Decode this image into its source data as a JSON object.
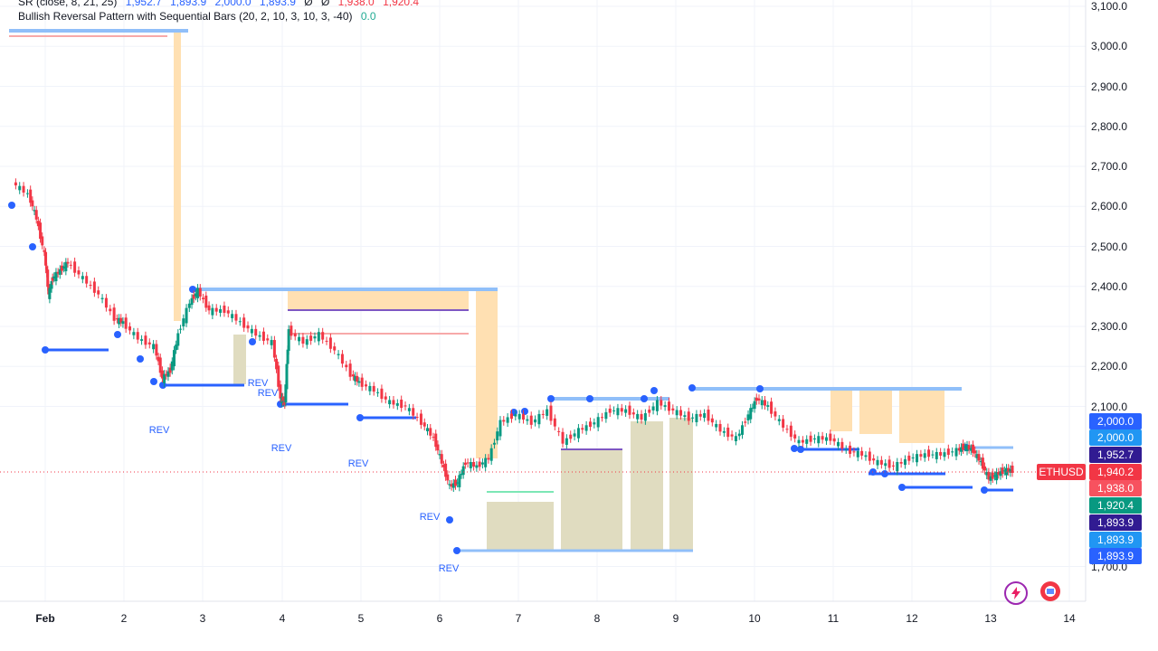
{
  "indicators": [
    {
      "name": "SR (close, 8, 21, 25)",
      "values": [
        "1,952.7",
        "1,893.9",
        "2,000.0",
        "1,893.9",
        "Ø",
        "Ø",
        "1,938.0",
        "1,920.4"
      ],
      "value_colors": [
        "#2962ff",
        "#2962ff",
        "#2962ff",
        "#2962ff",
        "#131722",
        "#131722",
        "#f23645",
        "#f23645"
      ]
    },
    {
      "name": "Bullish Reversal Pattern with Sequential Bars (20, 2, 10, 3, 10, 3, -40)",
      "values": [
        "0.0"
      ],
      "value_colors": [
        "#22ab94"
      ]
    }
  ],
  "y_axis": {
    "ticks": [
      "3,100.0",
      "3,000.0",
      "2,900.0",
      "2,800.0",
      "2,700.0",
      "2,600.0",
      "2,500.0",
      "2,400.0",
      "2,300.0",
      "2,200.0",
      "2,100.0",
      "1,700.0"
    ],
    "tick_values": [
      3100,
      3000,
      2900,
      2800,
      2700,
      2600,
      2500,
      2400,
      2300,
      2200,
      2100,
      1700
    ]
  },
  "x_axis": {
    "labels": [
      "Feb",
      "2",
      "3",
      "4",
      "5",
      "6",
      "7",
      "8",
      "9",
      "10",
      "11",
      "12",
      "13",
      "14"
    ]
  },
  "price_tags": [
    {
      "value": "2,000.0",
      "color": "#2962ff"
    },
    {
      "value": "2,000.0",
      "color": "#2196f3"
    },
    {
      "value": "1,952.7",
      "color": "#311b92"
    },
    {
      "value": "1,940.2",
      "color": "#f23645"
    },
    {
      "value": "1,938.0",
      "color": "#f7525f"
    },
    {
      "value": "1,920.4",
      "color": "#089981"
    },
    {
      "value": "1,893.9",
      "color": "#311b92"
    },
    {
      "value": "1,893.9",
      "color": "#2196f3"
    },
    {
      "value": "1,893.9",
      "color": "#2962ff"
    }
  ],
  "symbol": "ETHUSD",
  "rev_label": "REV",
  "colors": {
    "up": "#089981",
    "down": "#f23645",
    "support_line": "#2962ff",
    "resistance_band": "#ffe0b2",
    "olive_box": "#e0dcc0"
  },
  "chart_data": {
    "type": "line",
    "title": "",
    "xlabel": "",
    "ylabel": "",
    "ylim": [
      1650,
      3130
    ],
    "xlim": [
      0.6,
      14.2
    ],
    "series": [
      {
        "values": [
          [
            0.6,
            2660
          ],
          [
            0.8,
            2630
          ],
          [
            0.9,
            2570
          ],
          [
            1.0,
            2480
          ],
          [
            1.05,
            2380
          ],
          [
            1.1,
            2420
          ],
          [
            1.2,
            2440
          ],
          [
            1.3,
            2460
          ],
          [
            1.5,
            2420
          ],
          [
            1.7,
            2380
          ],
          [
            1.9,
            2320
          ],
          [
            2.0,
            2310
          ],
          [
            2.2,
            2270
          ],
          [
            2.4,
            2250
          ],
          [
            2.5,
            2170
          ],
          [
            2.6,
            2190
          ],
          [
            2.7,
            2280
          ],
          [
            2.85,
            2360
          ],
          [
            2.95,
            2390
          ],
          [
            3.1,
            2340
          ],
          [
            3.3,
            2340
          ],
          [
            3.5,
            2310
          ],
          [
            3.7,
            2280
          ],
          [
            3.9,
            2260
          ],
          [
            4.0,
            2120
          ],
          [
            4.05,
            2110
          ],
          [
            4.1,
            2290
          ],
          [
            4.3,
            2260
          ],
          [
            4.5,
            2280
          ],
          [
            4.7,
            2240
          ],
          [
            4.9,
            2180
          ],
          [
            5.0,
            2160
          ],
          [
            5.2,
            2140
          ],
          [
            5.4,
            2110
          ],
          [
            5.6,
            2100
          ],
          [
            5.8,
            2060
          ],
          [
            5.95,
            2020
          ],
          [
            6.05,
            1960
          ],
          [
            6.15,
            1900
          ],
          [
            6.25,
            1910
          ],
          [
            6.35,
            1960
          ],
          [
            6.5,
            1950
          ],
          [
            6.65,
            1970
          ],
          [
            6.8,
            2060
          ],
          [
            7.0,
            2080
          ],
          [
            7.2,
            2060
          ],
          [
            7.4,
            2090
          ],
          [
            7.6,
            2010
          ],
          [
            7.8,
            2040
          ],
          [
            8.0,
            2060
          ],
          [
            8.2,
            2090
          ],
          [
            8.4,
            2090
          ],
          [
            8.6,
            2070
          ],
          [
            8.8,
            2110
          ],
          [
            9.0,
            2090
          ],
          [
            9.2,
            2070
          ],
          [
            9.4,
            2080
          ],
          [
            9.6,
            2040
          ],
          [
            9.8,
            2020
          ],
          [
            9.95,
            2080
          ],
          [
            10.05,
            2120
          ],
          [
            10.2,
            2100
          ],
          [
            10.4,
            2050
          ],
          [
            10.6,
            2010
          ],
          [
            10.8,
            2020
          ],
          [
            11.0,
            2020
          ],
          [
            11.2,
            1990
          ],
          [
            11.4,
            1980
          ],
          [
            11.6,
            1960
          ],
          [
            11.8,
            1950
          ],
          [
            12.0,
            1970
          ],
          [
            12.2,
            1980
          ],
          [
            12.4,
            1980
          ],
          [
            12.6,
            1990
          ],
          [
            12.7,
            2000
          ],
          [
            12.8,
            1990
          ],
          [
            12.9,
            1960
          ],
          [
            13.0,
            1920
          ],
          [
            13.1,
            1930
          ],
          [
            13.2,
            1940
          ],
          [
            13.3,
            1940
          ]
        ]
      }
    ],
    "grid": true,
    "legend": "none"
  }
}
